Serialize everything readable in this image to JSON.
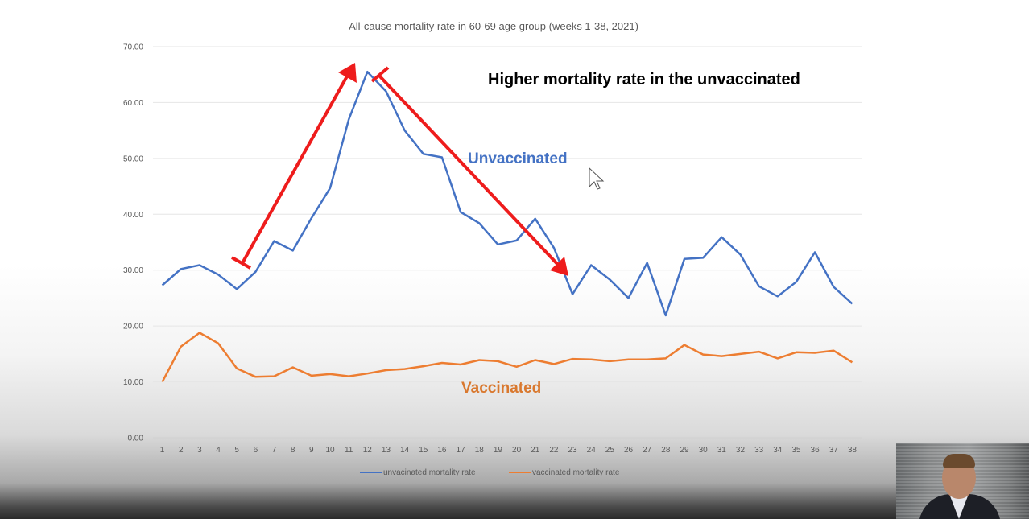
{
  "chart_data": {
    "type": "line",
    "title": "All-cause mortality rate in 60-69 age group (weeks 1-38, 2021)",
    "xlabel": "",
    "ylabel": "",
    "ylim": [
      0,
      70
    ],
    "y_ticks": [
      "0.00",
      "10.00",
      "20.00",
      "30.00",
      "40.00",
      "50.00",
      "60.00",
      "70.00"
    ],
    "categories": [
      "1",
      "2",
      "3",
      "4",
      "5",
      "6",
      "7",
      "8",
      "9",
      "10",
      "11",
      "12",
      "13",
      "14",
      "15",
      "16",
      "17",
      "18",
      "19",
      "20",
      "21",
      "22",
      "23",
      "24",
      "25",
      "26",
      "27",
      "28",
      "29",
      "30",
      "31",
      "32",
      "33",
      "34",
      "35",
      "36",
      "37",
      "38"
    ],
    "series": [
      {
        "name": "unvacinated mortality rate",
        "color": "#4472c4",
        "values": [
          27.3,
          30.2,
          30.9,
          29.2,
          26.6,
          29.7,
          35.2,
          33.5,
          39.3,
          44.7,
          57.0,
          65.5,
          62.0,
          55.0,
          50.8,
          50.2,
          40.4,
          38.4,
          34.6,
          35.3,
          39.2,
          34.0,
          25.7,
          30.9,
          28.3,
          25.0,
          31.3,
          21.9,
          32.0,
          32.2,
          35.9,
          32.8,
          27.1,
          25.3,
          27.9,
          33.2,
          27.0,
          24.0
        ]
      },
      {
        "name": "vaccinated mortality rate",
        "color": "#ed7d31",
        "values": [
          10.0,
          16.3,
          18.8,
          16.9,
          12.4,
          10.9,
          11.0,
          12.6,
          11.1,
          11.4,
          11.0,
          11.5,
          12.1,
          12.3,
          12.8,
          13.4,
          13.1,
          13.9,
          13.7,
          12.7,
          13.9,
          13.2,
          14.1,
          14.0,
          13.7,
          14.0,
          14.0,
          14.2,
          16.6,
          14.9,
          14.6,
          15.0,
          15.4,
          14.2,
          15.3,
          15.2,
          15.6,
          13.5
        ]
      }
    ],
    "annotations": {
      "headline": "Higher mortality rate in the unvaccinated",
      "unvaccinated_label": "Unvaccinated",
      "vaccinated_label": "Vaccinated",
      "arrow_color": "#ee1c1c",
      "unvaccinated_label_color": "#4472c4",
      "vaccinated_label_color": "#d9782e"
    },
    "legend_position": "bottom"
  }
}
